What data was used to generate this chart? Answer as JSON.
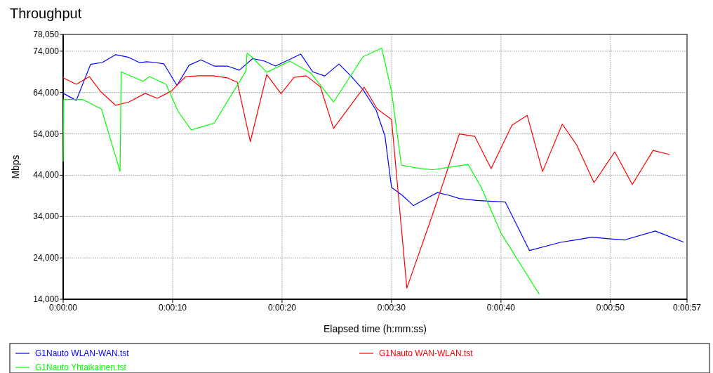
{
  "chart_data": {
    "type": "line",
    "title": "Throughput",
    "xlabel": "Elapsed time (h:mm:ss)",
    "ylabel": "Mbps",
    "xlim": [
      0,
      57
    ],
    "xticks": [
      {
        "value": 0,
        "label": "0:00:00"
      },
      {
        "value": 10,
        "label": "0:00:10"
      },
      {
        "value": 20,
        "label": "0:00:20"
      },
      {
        "value": 30,
        "label": "0:00:30"
      },
      {
        "value": 40,
        "label": "0:00:40"
      },
      {
        "value": 50,
        "label": "0:00:50"
      },
      {
        "value": 57,
        "label": "0:00:57"
      }
    ],
    "ylim": [
      14000,
      78050
    ],
    "yticks": [
      {
        "value": 14000,
        "label": "14,000"
      },
      {
        "value": 24000,
        "label": "24,000"
      },
      {
        "value": 34000,
        "label": "34,000"
      },
      {
        "value": 44000,
        "label": "44,000"
      },
      {
        "value": 54000,
        "label": "54,000"
      },
      {
        "value": 64000,
        "label": "64,000"
      },
      {
        "value": 74000,
        "label": "74,000"
      },
      {
        "value": 78050,
        "label": "78,050"
      }
    ],
    "grid": true,
    "legend": "bottom",
    "marker": "none",
    "line_style": "solid",
    "series": [
      {
        "name": "G1Nauto WLAN-WAN.tst",
        "color": "#0000ff",
        "x": [
          0,
          1.2,
          2.5,
          3.6,
          4.8,
          5.3,
          6.0,
          7.0,
          7.6,
          8.3,
          9.2,
          10.4,
          11.5,
          12.6,
          13.8,
          15.0,
          16.1,
          17.3,
          18.4,
          19.4,
          20.6,
          21.7,
          22.8,
          23.9,
          25.2,
          26.3,
          27.4,
          28.6,
          29.4,
          30.0,
          31.0,
          32.0,
          33.1,
          34.2,
          35.3,
          36.2,
          37.8,
          40.4,
          42.6,
          45.5,
          46.8,
          48.3,
          50.0,
          51.3,
          54.1,
          56.7
        ],
        "values": [
          63800,
          62100,
          70800,
          71300,
          73150,
          72900,
          72500,
          71200,
          71450,
          71300,
          70950,
          65700,
          70600,
          71900,
          70400,
          70400,
          69400,
          72200,
          71600,
          70400,
          71900,
          73300,
          69000,
          68000,
          70900,
          67950,
          64700,
          59700,
          53500,
          41050,
          39100,
          36650,
          38250,
          39800,
          39100,
          38350,
          37900,
          37500,
          25800,
          27800,
          28350,
          29000,
          28600,
          28350,
          30500,
          27800
        ]
      },
      {
        "name": "G1Nauto WAN-WLAN.tst",
        "color": "#ff0000",
        "x": [
          0,
          1.2,
          2.4,
          3.4,
          4.8,
          6.0,
          7.5,
          8.6,
          9.9,
          11.2,
          12.4,
          13.7,
          15.0,
          15.9,
          17.1,
          18.6,
          19.9,
          21.1,
          22.2,
          23.5,
          24.7,
          26.1,
          27.5,
          28.7,
          30.0,
          31.4,
          33.8,
          36.2,
          37.6,
          39.1,
          41.0,
          42.4,
          43.8,
          45.6,
          46.9,
          48.5,
          50.4,
          52.0,
          53.9,
          55.4
        ],
        "values": [
          67550,
          66000,
          67850,
          64300,
          60900,
          61700,
          63800,
          62600,
          64400,
          67850,
          68050,
          68050,
          67550,
          66500,
          52100,
          68350,
          63700,
          67650,
          68050,
          65400,
          55300,
          60300,
          65300,
          60000,
          57500,
          16700,
          34850,
          54000,
          53400,
          45600,
          56100,
          58450,
          44900,
          56350,
          51400,
          42200,
          49650,
          41750,
          50000,
          49000
        ]
      },
      {
        "name": "G1Nauto Yhtaikainen.tst",
        "color": "#00ff00",
        "x": [
          0,
          0.05,
          1.8,
          3.5,
          5.2,
          5.25,
          5.3,
          7.3,
          7.9,
          9.4,
          10.5,
          11.7,
          12.6,
          13.8,
          16.7,
          16.8,
          17.3,
          18.6,
          20.7,
          22.6,
          24.7,
          27.4,
          29.1,
          30.0,
          30.9,
          32.3,
          33.8,
          34.8,
          37.0,
          38.2,
          40.0,
          43.5
        ],
        "values": [
          47300,
          62300,
          62300,
          60000,
          44900,
          56900,
          69000,
          66700,
          67850,
          66000,
          59450,
          54950,
          55650,
          56600,
          69200,
          73500,
          72450,
          68900,
          71600,
          68800,
          61700,
          72650,
          74750,
          64300,
          46450,
          45750,
          45300,
          45750,
          46600,
          41050,
          30000,
          15200
        ]
      }
    ]
  }
}
